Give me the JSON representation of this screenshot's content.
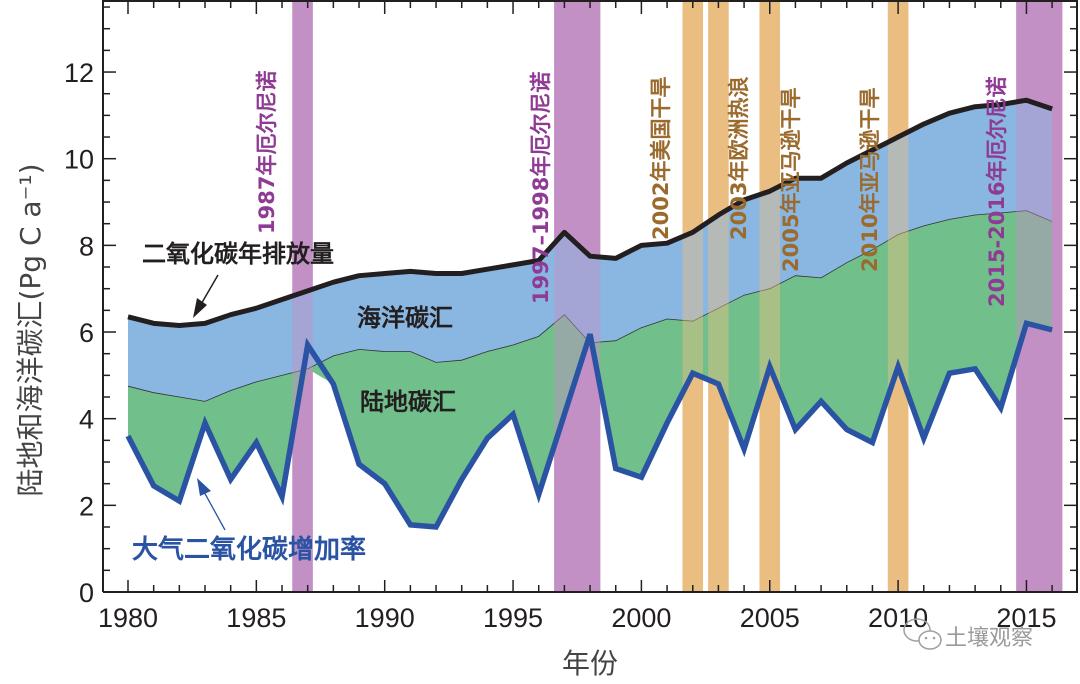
{
  "chart_data": {
    "type": "area",
    "title": "",
    "xlabel": "年份",
    "ylabel": "陆地和海洋碳汇(Pg C a⁻¹)",
    "xlim": [
      1979.2,
      2017
    ],
    "ylim": [
      0,
      14
    ],
    "x_ticks": [
      1980,
      1985,
      1990,
      1995,
      2000,
      2005,
      2010,
      2015
    ],
    "y_ticks": [
      0,
      2,
      4,
      6,
      8,
      10,
      12
    ],
    "x": [
      1980,
      1981,
      1982,
      1983,
      1984,
      1985,
      1986,
      1987,
      1988,
      1989,
      1990,
      1991,
      1992,
      1993,
      1994,
      1995,
      1996,
      1997,
      1998,
      1999,
      2000,
      2001,
      2002,
      2003,
      2004,
      2005,
      2006,
      2007,
      2008,
      2009,
      2010,
      2011,
      2012,
      2013,
      2014,
      2015,
      2016
    ],
    "series": [
      {
        "name": "二氧化碳年排放量",
        "role": "emissions-line",
        "color": "#231f20",
        "values": [
          6.35,
          6.2,
          6.15,
          6.2,
          6.4,
          6.55,
          6.75,
          6.95,
          7.15,
          7.3,
          7.35,
          7.4,
          7.35,
          7.35,
          7.45,
          7.55,
          7.65,
          8.3,
          7.75,
          7.7,
          8.0,
          8.05,
          8.3,
          8.7,
          9.05,
          9.25,
          9.55,
          9.55,
          9.9,
          10.2,
          10.5,
          10.8,
          11.05,
          11.2,
          11.25,
          11.35,
          11.15
        ]
      },
      {
        "name": "海洋碳汇",
        "role": "ocean-sink-lower-boundary",
        "color": "#8ab6e2",
        "values": [
          4.75,
          4.6,
          4.5,
          4.4,
          4.65,
          4.85,
          5.0,
          5.15,
          5.45,
          5.6,
          5.55,
          5.55,
          5.3,
          5.35,
          5.55,
          5.7,
          5.9,
          6.4,
          5.75,
          5.8,
          6.1,
          6.3,
          6.25,
          6.55,
          6.85,
          7.0,
          7.3,
          7.25,
          7.6,
          7.9,
          8.25,
          8.45,
          8.6,
          8.7,
          8.75,
          8.8,
          8.55
        ]
      },
      {
        "name": "陆地碳汇",
        "role": "land-sink-fill",
        "color": "#71bf8b"
      },
      {
        "name": "大气二氧化碳增加率",
        "role": "atmospheric-growth-line",
        "color": "#2a54a3",
        "values": [
          3.6,
          2.45,
          2.1,
          3.9,
          2.6,
          3.45,
          2.2,
          5.7,
          4.8,
          2.95,
          2.5,
          1.55,
          1.5,
          2.6,
          3.55,
          4.1,
          2.25,
          4.1,
          5.95,
          2.85,
          2.65,
          3.9,
          5.05,
          4.8,
          3.3,
          5.2,
          3.75,
          4.4,
          3.75,
          3.45,
          5.2,
          3.55,
          5.05,
          5.15,
          4.25,
          6.2,
          6.05
        ]
      }
    ],
    "events": [
      {
        "label": "1987年厄尔尼诺",
        "kind": "el-nino",
        "start": 1986.4,
        "end": 1987.2,
        "color": "#c391c6",
        "text_color": "#8f3a94"
      },
      {
        "label": "1997–1998年厄尔尼诺",
        "kind": "el-nino",
        "start": 1996.6,
        "end": 1998.4,
        "color": "#c391c6",
        "text_color": "#8f3a94"
      },
      {
        "label": "2002年美国干旱",
        "kind": "drought",
        "start": 2001.6,
        "end": 2002.4,
        "color": "#eabe80",
        "text_color": "#9b6a2d"
      },
      {
        "label": "2003年欧洲热浪",
        "kind": "heatwave",
        "start": 2002.6,
        "end": 2003.4,
        "color": "#eabe80",
        "text_color": "#9b6a2d"
      },
      {
        "label": "2005年亚马逊干旱",
        "kind": "drought",
        "start": 2004.6,
        "end": 2005.4,
        "color": "#eabe80",
        "text_color": "#9b6a2d"
      },
      {
        "label": "2010年亚马逊干旱",
        "kind": "drought",
        "start": 2009.6,
        "end": 2010.4,
        "color": "#eabe80",
        "text_color": "#9b6a2d"
      },
      {
        "label": "2015-2016年厄尔尼诺",
        "kind": "el-nino",
        "start": 2014.6,
        "end": 2016.4,
        "color": "#c391c6",
        "text_color": "#8f3a94"
      }
    ],
    "annotations": {
      "emissions": "二氧化碳年排放量",
      "ocean": "海洋碳汇",
      "land": "陆地碳汇",
      "atmosphere": "大气二氧化碳增加率"
    },
    "grid": false,
    "legend": "none (inline annotations)"
  },
  "watermark": "土壤观察"
}
